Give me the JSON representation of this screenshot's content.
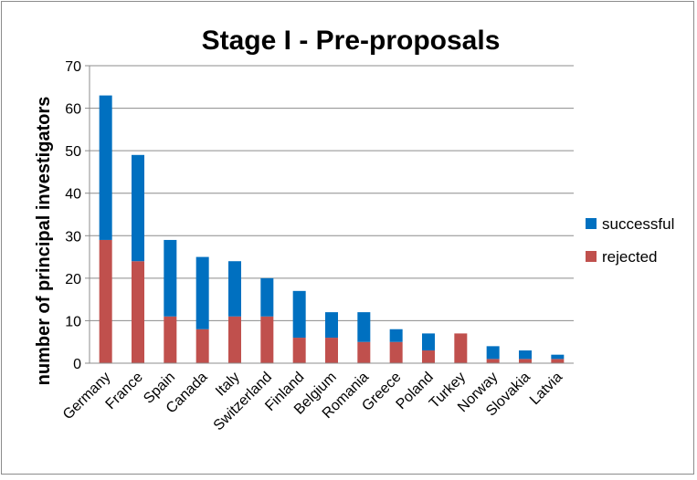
{
  "chart_data": {
    "type": "bar",
    "stacked": true,
    "title": "Stage I - Pre-proposals",
    "xlabel": "",
    "ylabel": "number of principal investigators",
    "ylim": [
      0,
      70
    ],
    "yticks": [
      0,
      10,
      20,
      30,
      40,
      50,
      60,
      70
    ],
    "grid": true,
    "legend_position": "right",
    "categories": [
      "Germany",
      "France",
      "Spain",
      "Canada",
      "Italy",
      "Switzerland",
      "Finland",
      "Belgium",
      "Romania",
      "Greece",
      "Poland",
      "Turkey",
      "Norway",
      "Slovakia",
      "Latvia"
    ],
    "series": [
      {
        "name": "rejected",
        "color": "#c0504d",
        "values": [
          29,
          24,
          11,
          8,
          11,
          11,
          6,
          6,
          5,
          5,
          3,
          7,
          1,
          1,
          1
        ]
      },
      {
        "name": "successful",
        "color": "#0070c0",
        "values": [
          34,
          25,
          18,
          17,
          13,
          9,
          11,
          6,
          7,
          3,
          4,
          0,
          3,
          2,
          1
        ]
      }
    ],
    "legend_order": [
      "successful",
      "rejected"
    ]
  }
}
